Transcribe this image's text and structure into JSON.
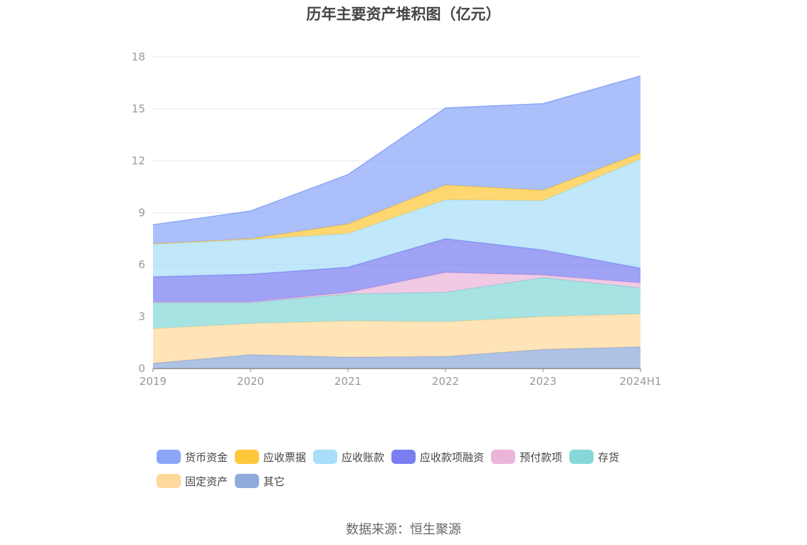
{
  "chart_data": {
    "type": "area",
    "stacked": true,
    "title": "历年主要资产堆积图（亿元）",
    "categories": [
      "2019",
      "2020",
      "2021",
      "2022",
      "2023",
      "2024H1"
    ],
    "ylim": [
      0,
      18
    ],
    "yticks": [
      "0",
      "3",
      "6",
      "9",
      "12",
      "15",
      "18"
    ],
    "grid": true,
    "series": [
      {
        "name": "其它",
        "color": "#8FAADC",
        "values": [
          0.3,
          0.8,
          0.65,
          0.7,
          1.1,
          1.25
        ]
      },
      {
        "name": "固定资产",
        "color": "#FFD99B",
        "values": [
          2.0,
          1.8,
          2.1,
          2.0,
          1.9,
          1.9
        ]
      },
      {
        "name": "存货",
        "color": "#86D8D8",
        "values": [
          1.5,
          1.2,
          1.55,
          1.7,
          2.25,
          1.5
        ]
      },
      {
        "name": "预付款项",
        "color": "#EAB5D9",
        "values": [
          0.05,
          0.05,
          0.1,
          1.15,
          0.15,
          0.3
        ]
      },
      {
        "name": "应收款项融资",
        "color": "#7B7EF0",
        "values": [
          1.45,
          1.6,
          1.45,
          1.95,
          1.45,
          0.85
        ]
      },
      {
        "name": "应收账款",
        "color": "#A8DEF8",
        "values": [
          1.9,
          2.0,
          1.95,
          2.25,
          2.85,
          6.3
        ]
      },
      {
        "name": "应收票据",
        "color": "#FFC83A",
        "values": [
          0.0,
          0.05,
          0.55,
          0.85,
          0.6,
          0.35
        ]
      },
      {
        "name": "货币资金",
        "color": "#8AA6F8",
        "values": [
          1.1,
          1.6,
          2.85,
          4.45,
          5.0,
          4.45
        ]
      }
    ],
    "legend_order": [
      "货币资金",
      "应收票据",
      "应收账款",
      "应收款项融资",
      "预付款项",
      "存货",
      "固定资产",
      "其它"
    ]
  },
  "source": "数据来源：恒生聚源"
}
